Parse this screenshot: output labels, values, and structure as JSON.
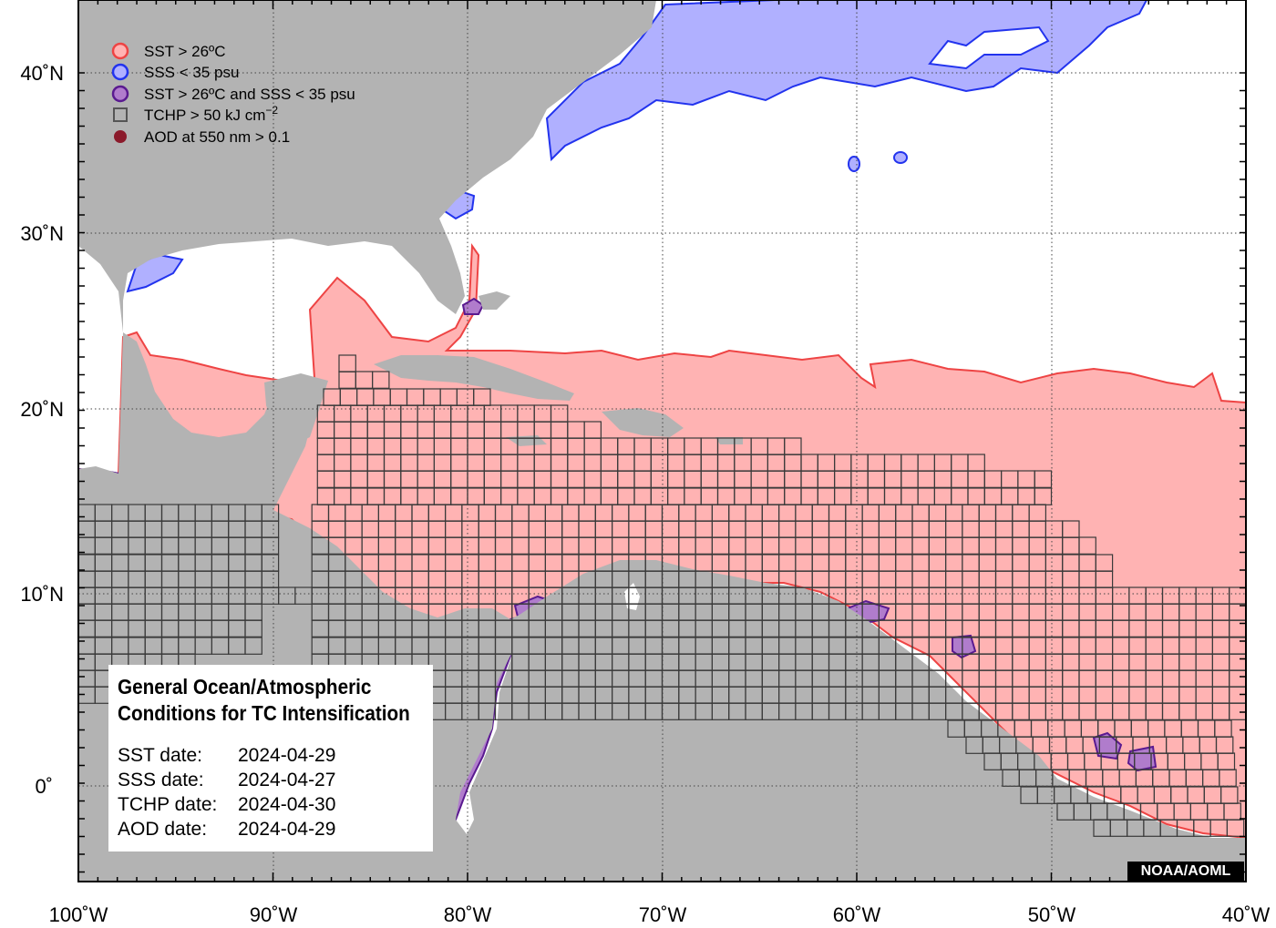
{
  "legend": {
    "items": [
      {
        "label": "SST > 26ºC",
        "color": "#ff6b6b"
      },
      {
        "label": "SSS < 35 psu",
        "color": "#3344ff"
      },
      {
        "label": "SST > 26ºC and SSS < 35 psu",
        "color": "#7a2aa8"
      },
      {
        "label": "TCHP > 50 kJ cm",
        "sup": "−2",
        "color": "#555555"
      },
      {
        "label": "AOD at 550 nm > 0.1",
        "color": "#8b1a2b"
      }
    ]
  },
  "axes": {
    "lat_ticks": [
      "40˚N",
      "30˚N",
      "20˚N",
      "10˚N",
      "0˚"
    ],
    "lon_ticks": [
      "100˚W",
      "90˚W",
      "80˚W",
      "70˚W",
      "60˚W",
      "50˚W",
      "40˚W"
    ]
  },
  "info": {
    "title_line1": "General Ocean/Atmospheric",
    "title_line2": "Conditions for TC Intensification",
    "rows": [
      {
        "key": "SST date:",
        "value": "2024-04-29"
      },
      {
        "key": "SSS date:",
        "value": "2024-04-27"
      },
      {
        "key": "TCHP date:",
        "value": "2024-04-30"
      },
      {
        "key": "AOD date:",
        "value": "2024-04-29"
      }
    ]
  },
  "credit": "NOAA/AOML",
  "colors": {
    "land": "#b3b3b3",
    "sst_fill": "#ffb3b3",
    "sst_line": "#ee4444",
    "sss_fill": "#b0b0ff",
    "sss_line": "#2233ee",
    "both_fill": "#b07ccc",
    "both_line": "#5a1a90",
    "grid": "#444444"
  }
}
